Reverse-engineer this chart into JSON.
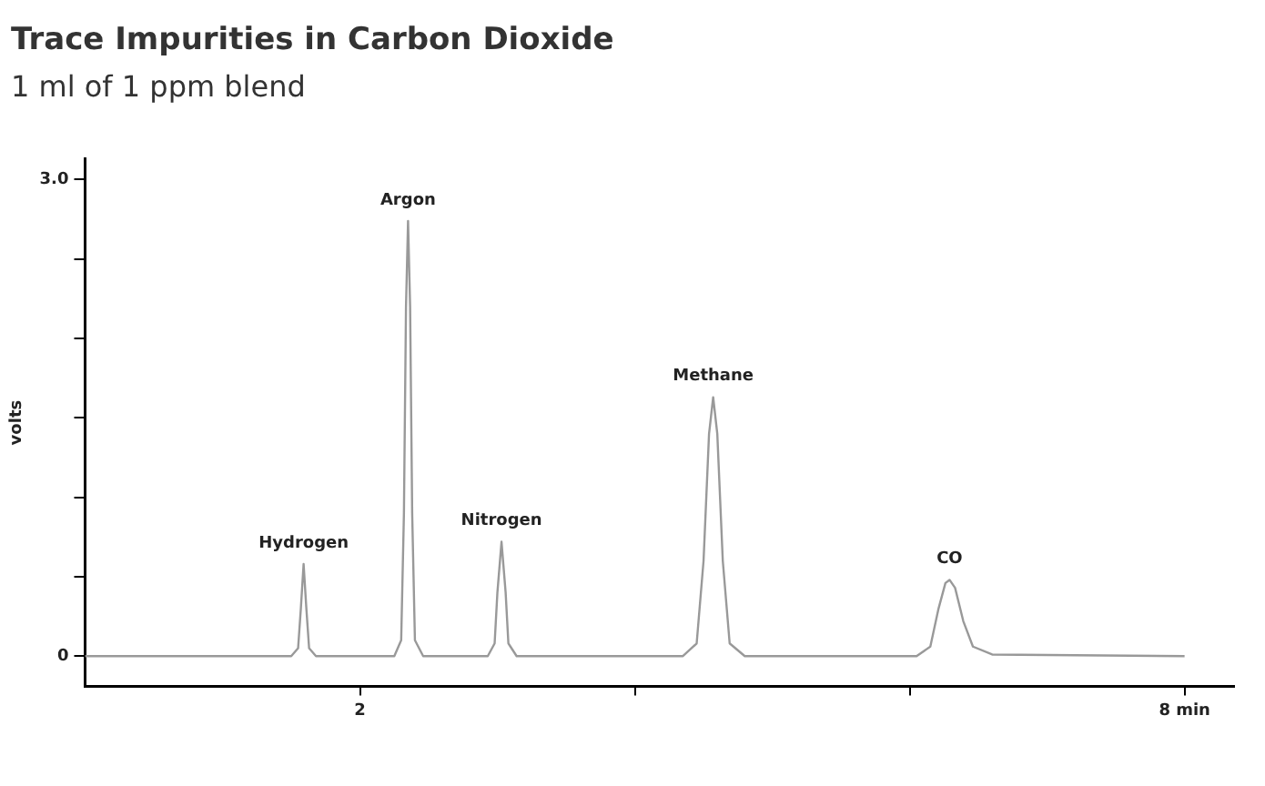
{
  "chart_data": {
    "type": "line",
    "title": "Trace Impurities in Carbon Dioxide",
    "subtitle": "1 ml of 1 ppm blend",
    "ylabel": "volts",
    "x": [
      0,
      1.5,
      1.55,
      1.57,
      1.59,
      1.61,
      1.63,
      1.68,
      2.25,
      2.3,
      2.32,
      2.335,
      2.35,
      2.365,
      2.38,
      2.4,
      2.46,
      2.93,
      2.98,
      3.0,
      3.03,
      3.06,
      3.08,
      3.14,
      4.35,
      4.45,
      4.5,
      4.54,
      4.57,
      4.6,
      4.64,
      4.69,
      4.8,
      6.05,
      6.15,
      6.21,
      6.26,
      6.29,
      6.33,
      6.39,
      6.46,
      6.6,
      8
    ],
    "values": [
      0,
      0,
      0.05,
      0.3,
      0.58,
      0.3,
      0.05,
      0,
      0,
      0.1,
      0.9,
      2.2,
      2.74,
      2.2,
      0.9,
      0.1,
      0,
      0,
      0.08,
      0.4,
      0.72,
      0.4,
      0.08,
      0,
      0,
      0.08,
      0.6,
      1.4,
      1.63,
      1.4,
      0.6,
      0.08,
      0,
      0,
      0.06,
      0.3,
      0.46,
      0.48,
      0.43,
      0.22,
      0.06,
      0.01,
      0
    ],
    "color": "#999999",
    "xlim": [
      0,
      8.36
    ],
    "xticks": [
      2,
      {
        "value": 4,
        "label": null
      },
      {
        "value": 6,
        "label": null
      },
      {
        "value": 8,
        "label": "8 min"
      }
    ],
    "ylim": [
      -0.19,
      3.13
    ],
    "yticks": [
      0,
      {
        "value": 0.5,
        "label": null
      },
      {
        "value": 1,
        "label": null
      },
      {
        "value": 1.5,
        "label": null
      },
      {
        "value": 2,
        "label": null
      },
      {
        "value": 2.5,
        "label": null
      },
      {
        "value": 3,
        "label": "3.0"
      }
    ],
    "annotations": [
      {
        "text": "Hydrogen",
        "x": 1.59,
        "y": 0.58
      },
      {
        "text": "Argon",
        "x": 2.35,
        "y": 2.74
      },
      {
        "text": "Nitrogen",
        "x": 3.03,
        "y": 0.72
      },
      {
        "text": "Methane",
        "x": 4.57,
        "y": 1.63
      },
      {
        "text": "CO",
        "x": 6.29,
        "y": 0.48
      }
    ],
    "grid": false
  }
}
